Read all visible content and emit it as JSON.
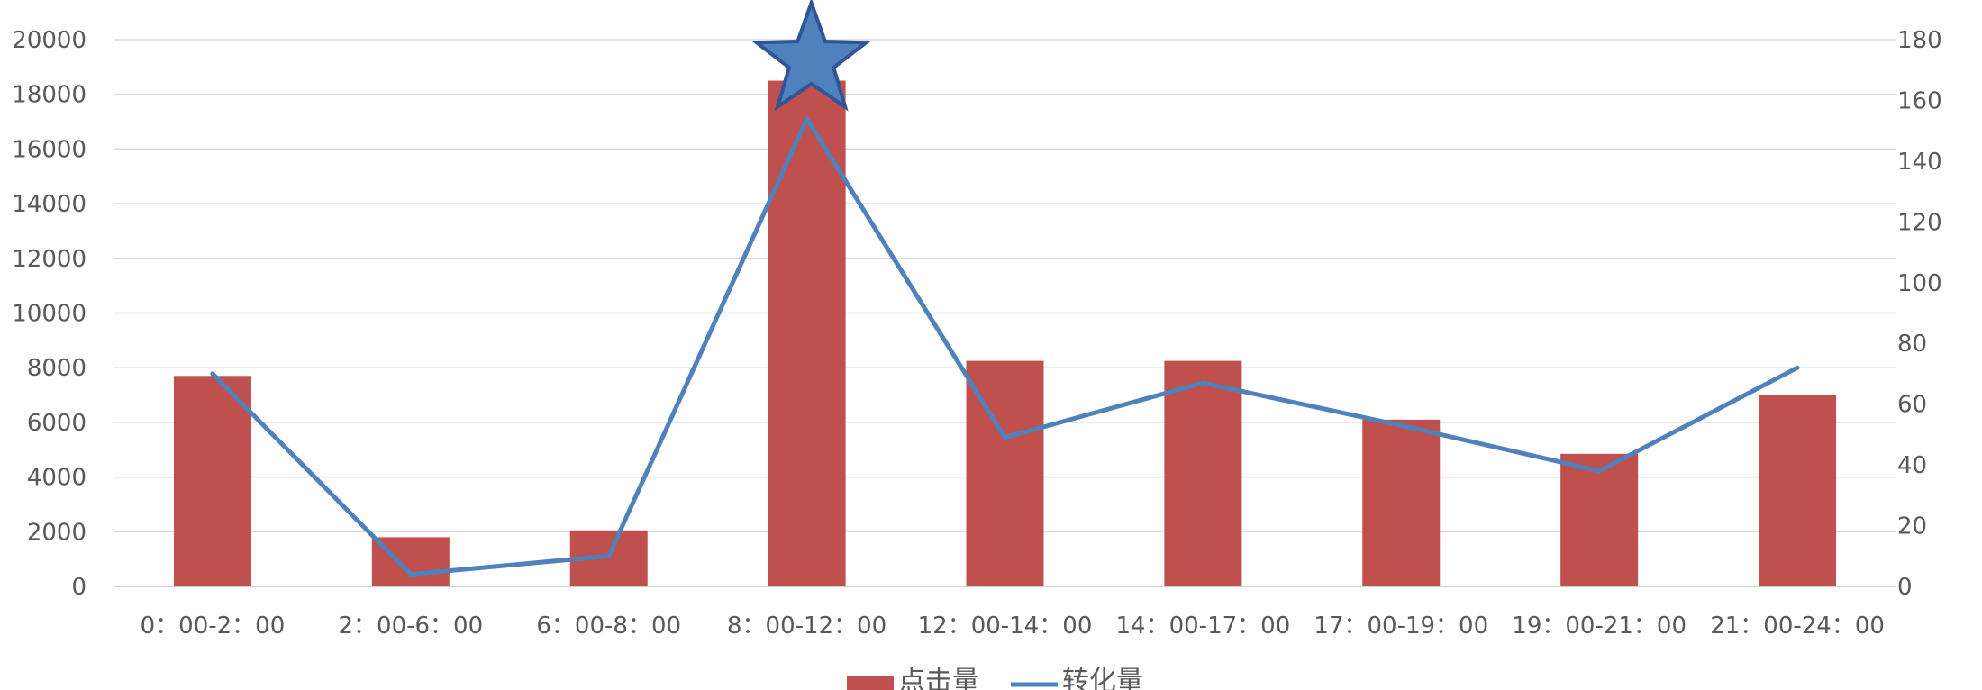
{
  "chart_data": {
    "type": "bar+line",
    "categories": [
      "0：00-2：00",
      "2：00-6：00",
      "6：00-8：00",
      "8：00-12：00",
      "12：00-14：00",
      "14：00-17：00",
      "17：00-19：00",
      "19：00-21：00",
      "21：00-24：00"
    ],
    "series": [
      {
        "name": "点击量",
        "type": "bar",
        "axis": "left",
        "color": "#C0504D",
        "values": [
          7700,
          1800,
          2050,
          18500,
          8250,
          8250,
          6100,
          4850,
          7000
        ]
      },
      {
        "name": "转化量",
        "type": "line",
        "axis": "right",
        "color": "#4F81BD",
        "values": [
          70,
          4,
          10,
          154,
          49,
          67,
          53,
          38,
          72
        ]
      }
    ],
    "y_left": {
      "min": 0,
      "max": 20000,
      "ticks": [
        0,
        2000,
        4000,
        6000,
        8000,
        10000,
        12000,
        14000,
        16000,
        18000,
        20000
      ]
    },
    "y_right": {
      "min": 0,
      "max": 180,
      "ticks": [
        0,
        20,
        40,
        60,
        80,
        100,
        120,
        140,
        160,
        180
      ]
    },
    "grid": true,
    "legend_position": "bottom",
    "highlight_marker": {
      "shape": "star",
      "category": "8：00-12：00",
      "color": "#4F81BD"
    }
  }
}
